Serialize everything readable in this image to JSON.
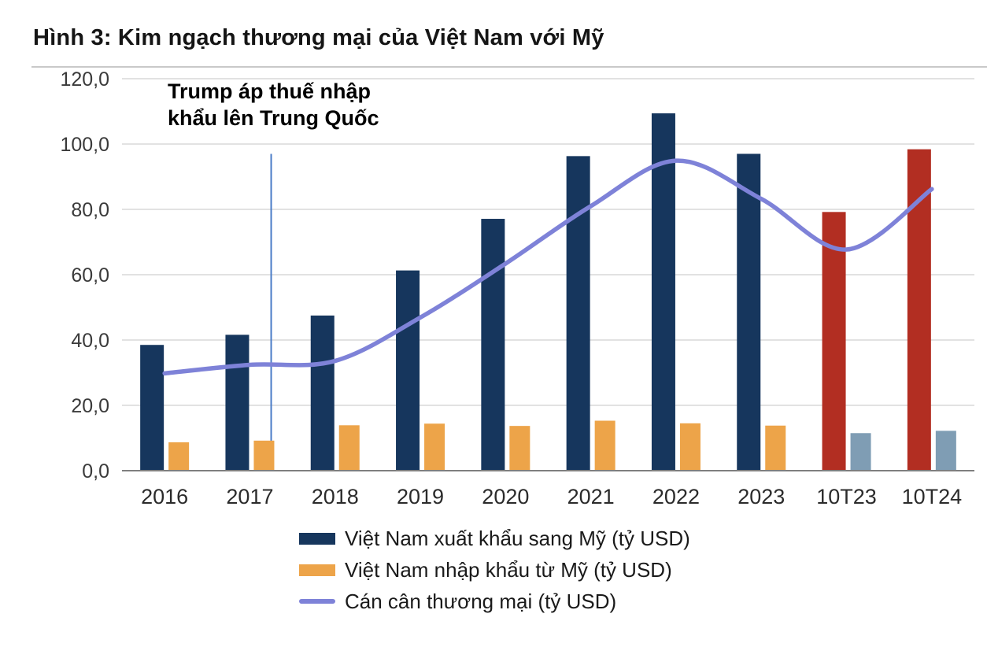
{
  "chart_data": {
    "type": "bar",
    "title": "Hình 3: Kim ngạch thương mại của Việt Nam với Mỹ",
    "categories": [
      "2016",
      "2017",
      "2018",
      "2019",
      "2020",
      "2021",
      "2022",
      "2023",
      "10T23",
      "10T24"
    ],
    "series": [
      {
        "name": "Việt Nam xuất khẩu sang Mỹ (tỷ USD)",
        "type": "bar",
        "values": [
          38.5,
          41.6,
          47.5,
          61.3,
          77.1,
          96.3,
          109.4,
          97.0,
          79.2,
          98.4
        ],
        "colors": [
          "#16365d",
          "#16365d",
          "#16365d",
          "#16365d",
          "#16365d",
          "#16365d",
          "#16365d",
          "#16365d",
          "#b22e22",
          "#b22e22"
        ],
        "legend_color": "#16365d"
      },
      {
        "name": "Việt Nam nhập khẩu từ Mỹ (tỷ USD)",
        "type": "bar",
        "values": [
          8.7,
          9.2,
          13.9,
          14.4,
          13.7,
          15.3,
          14.5,
          13.8,
          11.5,
          12.2
        ],
        "colors": [
          "#eda449",
          "#eda449",
          "#eda449",
          "#eda449",
          "#eda449",
          "#eda449",
          "#eda449",
          "#eda449",
          "#7f9db4",
          "#7f9db4"
        ],
        "legend_color": "#eda449"
      },
      {
        "name": "Cán cân thương mại (tỷ USD)",
        "type": "line",
        "values": [
          29.8,
          32.4,
          33.6,
          46.9,
          63.4,
          81.0,
          94.9,
          83.2,
          67.7,
          86.2
        ],
        "color": "#7e82d8",
        "legend_color": "#7e82d8"
      }
    ],
    "ylim": [
      0,
      120
    ],
    "yticks": [
      0,
      20,
      40,
      60,
      80,
      100,
      120
    ],
    "ytick_labels": [
      "0,0",
      "20,0",
      "40,0",
      "60,0",
      "80,0",
      "100,0",
      "120,0"
    ],
    "grid": "horizontal",
    "legend_position": "bottom",
    "annotation": {
      "lines": [
        "Trump áp thuế nhập",
        "khẩu lên Trung Quốc"
      ],
      "x_position": 1.75,
      "top_value": 97,
      "color": "#4a7cc7"
    },
    "axis_color": "#7f7f7f",
    "grid_color": "#d9d9d9"
  }
}
